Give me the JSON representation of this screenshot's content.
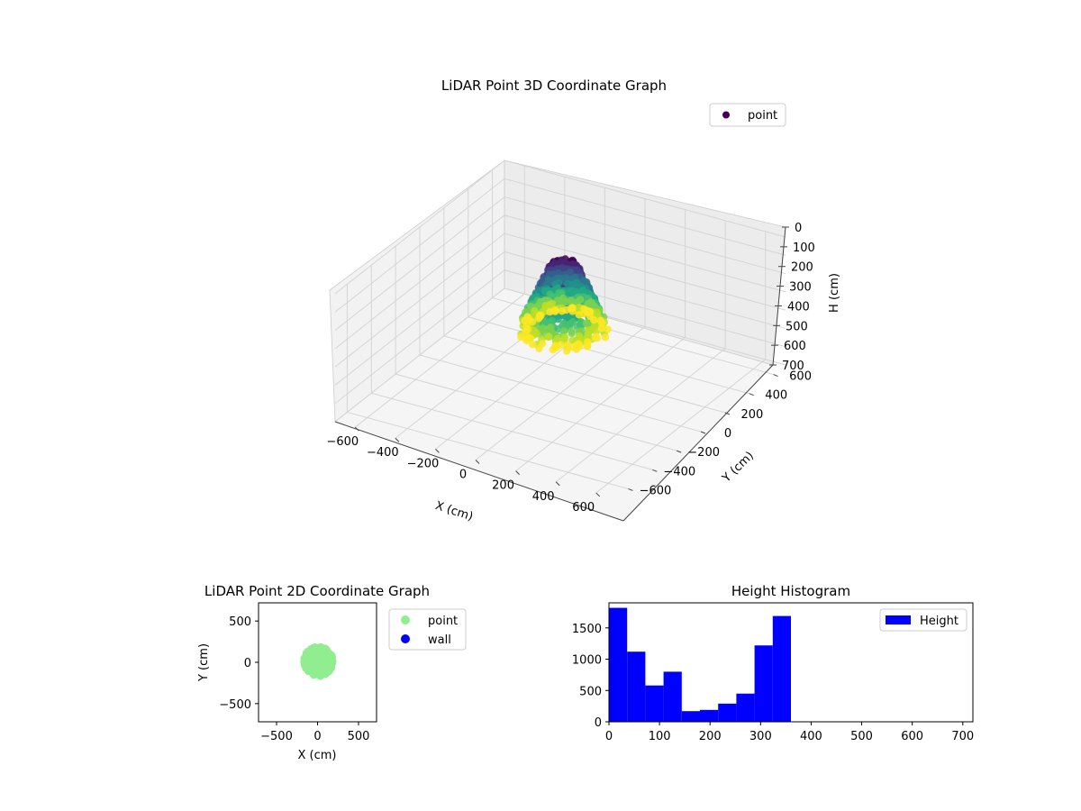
{
  "chart_data": [
    {
      "type": "scatter3d",
      "title": "LiDAR Point 3D Coordinate Graph",
      "xlabel": "X (cm)",
      "ylabel": "Y (cm)",
      "zlabel": "H (cm)",
      "xlim": [
        -700,
        700
      ],
      "ylim": [
        -700,
        700
      ],
      "zlim": [
        0,
        700
      ],
      "z_inverted": true,
      "xticks": [
        -600,
        -400,
        -200,
        0,
        200,
        400,
        600
      ],
      "yticks": [
        -600,
        -400,
        -200,
        0,
        200,
        400,
        600
      ],
      "zticks": [
        0,
        100,
        200,
        300,
        400,
        500,
        600,
        700
      ],
      "legend": {
        "position": "top-right",
        "entries": [
          "point"
        ]
      },
      "colormap": "viridis",
      "grid": true,
      "series": [
        {
          "name": "point",
          "shape": "cone",
          "x_range": [
            -200,
            200
          ],
          "y_range": [
            -200,
            200
          ],
          "h_range": [
            0,
            360
          ]
        }
      ]
    },
    {
      "type": "scatter",
      "title": "LiDAR Point 2D Coordinate Graph",
      "xlabel": "X (cm)",
      "ylabel": "Y (cm)",
      "xlim": [
        -720,
        720
      ],
      "ylim": [
        -720,
        720
      ],
      "xticks": [
        -500,
        0,
        500
      ],
      "yticks": [
        -500,
        0,
        500
      ],
      "legend": {
        "position": "outside-right",
        "entries": [
          "point",
          "wall"
        ]
      },
      "series": [
        {
          "name": "point",
          "color": "#90ee90",
          "cluster_center": [
            10,
            10
          ],
          "cluster_radius": 200
        },
        {
          "name": "wall",
          "color": "#0000ff",
          "points": []
        }
      ]
    },
    {
      "type": "bar",
      "title": "Height Histogram",
      "xlabel": "",
      "ylabel": "",
      "xlim": [
        0,
        720
      ],
      "ylim": [
        0,
        1900
      ],
      "xticks": [
        0,
        100,
        200,
        300,
        400,
        500,
        600,
        700
      ],
      "yticks": [
        0,
        500,
        1000,
        1500
      ],
      "bin_width": 36,
      "bin_starts": [
        0,
        36,
        72,
        108,
        144,
        180,
        216,
        252,
        288,
        324
      ],
      "values": [
        1820,
        1120,
        580,
        800,
        170,
        190,
        290,
        450,
        1220,
        1690
      ],
      "color": "#0000ff",
      "legend": {
        "position": "top-right",
        "entries": [
          "Height"
        ]
      }
    }
  ]
}
